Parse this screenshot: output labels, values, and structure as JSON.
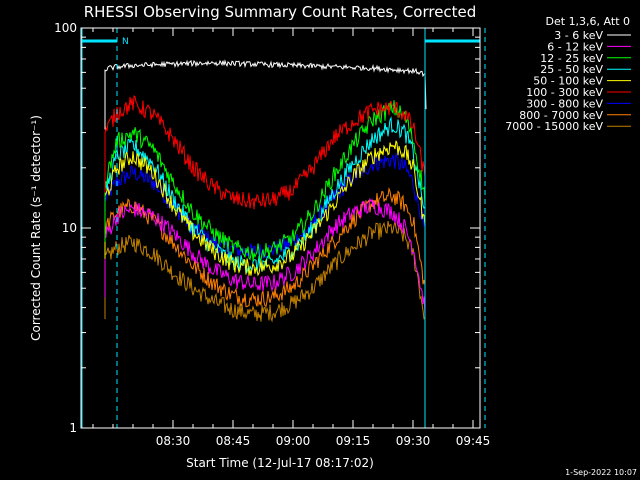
{
  "chart_data": {
    "type": "line",
    "title": "RHESSI Observing Summary Count Rates, Corrected",
    "xlabel": "Start Time (12-Jul-17 08:17:02)",
    "ylabel": "Corrected Count Rate (s⁻¹ detector⁻¹)",
    "y_scale": "log",
    "ylim": [
      1,
      100
    ],
    "xlim_minutes": [
      0,
      100
    ],
    "x_ticks": [
      {
        "label": "08:30",
        "minute": 30
      },
      {
        "label": "08:45",
        "minute": 45
      },
      {
        "label": "09:00",
        "minute": 60
      },
      {
        "label": "09:15",
        "minute": 75
      },
      {
        "label": "09:30",
        "minute": 90
      },
      {
        "label": "09:45",
        "minute": 105
      }
    ],
    "y_ticks": [
      {
        "label": "1",
        "value": 1
      },
      {
        "label": "10",
        "value": 10
      },
      {
        "label": "100",
        "value": 100
      }
    ],
    "legend_header": "Det 1,3,6, Att 0",
    "legend_position": "outside-right",
    "series": [
      {
        "name": "3 - 6 keV",
        "color": "#ffffff",
        "x": [
          13,
          14,
          16,
          20,
          30,
          40,
          50,
          60,
          70,
          80,
          85,
          90,
          92,
          93,
          93.4
        ],
        "y": [
          62,
          63,
          64,
          65,
          66,
          67,
          66,
          65,
          64,
          63,
          62,
          61,
          60,
          58,
          30
        ]
      },
      {
        "name": "6 - 12 keV",
        "color": "#ff00ff",
        "x": [
          13,
          16,
          20,
          25,
          30,
          35,
          40,
          45,
          50,
          55,
          60,
          65,
          70,
          75,
          80,
          85,
          88,
          90,
          91,
          92,
          93
        ],
        "y": [
          9,
          11.5,
          12.5,
          11.5,
          9.5,
          7.5,
          6.2,
          5.5,
          5.2,
          5.3,
          6.0,
          7.5,
          10,
          12,
          13,
          12,
          10,
          8,
          6.5,
          5,
          4
        ]
      },
      {
        "name": "12 - 25 keV",
        "color": "#00ff00",
        "x": [
          13,
          16,
          20,
          25,
          30,
          35,
          40,
          45,
          50,
          55,
          60,
          65,
          70,
          75,
          80,
          85,
          88,
          90,
          91,
          92,
          93
        ],
        "y": [
          17,
          27,
          30,
          25,
          17,
          12,
          9.5,
          8,
          7.5,
          7.8,
          9,
          12,
          18,
          26,
          35,
          40,
          36,
          28,
          22,
          18,
          14
        ]
      },
      {
        "name": "25 - 50 keV",
        "color": "#00ffff",
        "x": [
          13,
          16,
          20,
          25,
          30,
          35,
          40,
          45,
          50,
          55,
          60,
          65,
          70,
          75,
          80,
          85,
          88,
          90,
          91,
          92,
          93
        ],
        "y": [
          15,
          23,
          26,
          21,
          14,
          10,
          8,
          6.8,
          6.5,
          6.7,
          7.8,
          10,
          15,
          21,
          28,
          33,
          30,
          24,
          19,
          15,
          12
        ]
      },
      {
        "name": "50 - 100 keV",
        "color": "#ffff00",
        "x": [
          13,
          16,
          20,
          25,
          30,
          35,
          40,
          45,
          50,
          55,
          60,
          65,
          70,
          75,
          80,
          85,
          88,
          90,
          91,
          92,
          93
        ],
        "y": [
          14,
          20,
          23,
          19,
          13,
          9.5,
          7.7,
          6.6,
          6.3,
          6.5,
          7.3,
          9.5,
          13,
          18,
          23,
          26,
          24,
          20,
          16,
          13,
          10
        ]
      },
      {
        "name": "100 - 300 keV",
        "color": "#ff0000",
        "x": [
          13,
          16,
          20,
          25,
          30,
          35,
          40,
          45,
          50,
          55,
          60,
          65,
          70,
          75,
          80,
          85,
          88,
          90,
          91,
          92,
          93
        ],
        "y": [
          30,
          38,
          42,
          37,
          28,
          20,
          16,
          14,
          13.5,
          13.8,
          15.5,
          20,
          28,
          34,
          39,
          40,
          37,
          32,
          27,
          22,
          18
        ]
      },
      {
        "name": "300 - 800 keV",
        "color": "#0000ff",
        "x": [
          13,
          16,
          20,
          25,
          30,
          35,
          40,
          45,
          50,
          55,
          60,
          65,
          70,
          75,
          80,
          85,
          88,
          90,
          91,
          92,
          93
        ],
        "y": [
          14,
          17,
          19,
          17,
          13,
          10,
          8.5,
          7.8,
          7.6,
          7.8,
          8.5,
          10.5,
          14,
          18,
          21,
          22,
          20,
          17,
          14,
          12,
          9.5
        ]
      },
      {
        "name": "800 - 7000 keV",
        "color": "#ff8000",
        "x": [
          13,
          16,
          20,
          25,
          30,
          35,
          40,
          45,
          50,
          55,
          60,
          65,
          70,
          75,
          80,
          85,
          88,
          90,
          91,
          92,
          93
        ],
        "y": [
          10,
          12,
          13,
          11,
          8.5,
          6.5,
          5.3,
          4.6,
          4.4,
          4.5,
          5.1,
          6.5,
          8.5,
          11,
          13.5,
          14.5,
          13,
          11,
          8.5,
          6.5,
          5
        ]
      },
      {
        "name": "7000 - 15000 keV",
        "color": "#c08000",
        "x": [
          13,
          16,
          20,
          25,
          30,
          35,
          40,
          45,
          50,
          55,
          60,
          65,
          70,
          75,
          80,
          85,
          88,
          90,
          91,
          92,
          93
        ],
        "y": [
          7,
          8,
          8.5,
          7.5,
          6,
          5,
          4.3,
          3.9,
          3.7,
          3.8,
          4.2,
          5,
          6.5,
          8,
          9.5,
          10,
          9,
          7.5,
          6,
          4.5,
          3.5
        ]
      }
    ],
    "annotations": {
      "marker_label": "N",
      "day_segments_minutes": [
        [
          0,
          16
        ],
        [
          93,
          108
        ]
      ],
      "night_boundaries_minutes": [
        16,
        93,
        108
      ]
    },
    "timestamp": "1-Sep-2022 10:07"
  }
}
